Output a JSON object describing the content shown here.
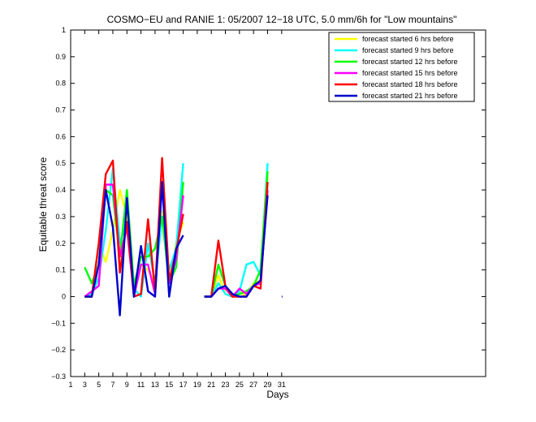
{
  "chart_data": {
    "type": "line",
    "title": "COSMO−EU and RANIE 1: 05/2007 12−18 UTC, 5.0 mm/6h for \"Low mountains\"",
    "xlabel": "Days",
    "ylabel": "Equitable threat score",
    "xlim": [
      1,
      60
    ],
    "ylim": [
      -0.3,
      1
    ],
    "xticks": [
      1,
      3,
      5,
      7,
      9,
      11,
      13,
      15,
      17,
      19,
      21,
      23,
      25,
      27,
      29,
      31
    ],
    "yticks": [
      -0.3,
      -0.2,
      -0.1,
      0,
      0.1,
      0.2,
      0.3,
      0.4,
      0.5,
      0.6,
      0.7,
      0.8,
      0.9,
      1
    ],
    "grid": false,
    "legend_position": "top-right",
    "x": [
      3,
      4,
      5,
      6,
      7,
      8,
      9,
      10,
      11,
      12,
      13,
      14,
      15,
      16,
      17,
      18,
      19,
      20,
      21,
      22,
      23,
      24,
      25,
      26,
      27,
      28,
      29,
      30,
      31
    ],
    "series": [
      {
        "name": "forecast started 6 hrs before",
        "color": "#ffff00",
        "values": [
          0,
          0,
          0.2,
          0.13,
          0.25,
          0.4,
          0.3,
          0,
          0.12,
          0.1,
          0.05,
          0.32,
          0.05,
          0.2,
          0.28,
          null,
          null,
          0,
          0,
          0.08,
          0.01,
          0,
          0.02,
          0,
          0.05,
          0.06,
          0.45,
          null,
          null
        ]
      },
      {
        "name": "forecast started 9 hrs before",
        "color": "#00ffff",
        "values": [
          0,
          0.01,
          0.07,
          0.25,
          0.48,
          0.2,
          0.28,
          0.03,
          0,
          0.2,
          0.05,
          0.3,
          0.1,
          0.18,
          0.5,
          null,
          null,
          0,
          0,
          0.05,
          0.01,
          0,
          0.02,
          0.12,
          0.13,
          0.08,
          0.5,
          null,
          null
        ]
      },
      {
        "name": "forecast started 12 hrs before",
        "color": "#00ff00",
        "values": [
          0.11,
          0.05,
          0.12,
          0.4,
          0.38,
          0.15,
          0.4,
          0.04,
          0.15,
          0.15,
          0.18,
          0.3,
          0.05,
          0.11,
          0.43,
          null,
          null,
          0,
          0,
          0.12,
          0.04,
          0,
          0.01,
          0.02,
          0.04,
          0.1,
          0.47,
          null,
          null
        ]
      },
      {
        "name": "forecast started 15 hrs before",
        "color": "#ff00ff",
        "values": [
          0,
          0.02,
          0.04,
          0.42,
          0.42,
          0.15,
          0.26,
          0,
          0.12,
          0.12,
          0.01,
          0.42,
          0.05,
          0.14,
          0.38,
          null,
          null,
          0,
          0,
          0.03,
          0.03,
          0,
          0.03,
          0.01,
          0.04,
          0.05,
          0.4,
          null,
          null
        ]
      },
      {
        "name": "forecast started 18 hrs before",
        "color": "#ff0000",
        "values": [
          0,
          0,
          0.2,
          0.46,
          0.51,
          0.09,
          0.28,
          0,
          0.01,
          0.29,
          0.02,
          0.52,
          0.06,
          0.17,
          0.31,
          null,
          null,
          0,
          0,
          0.21,
          0.04,
          0,
          0,
          0,
          0.04,
          0.03,
          0.43,
          null,
          null
        ]
      },
      {
        "name": "forecast started 21 hrs before",
        "color": "#0000cc",
        "values": [
          0,
          0,
          0.12,
          0.4,
          0.26,
          -0.07,
          0.37,
          0,
          0.19,
          0.02,
          0,
          0.43,
          0,
          0.18,
          0.23,
          null,
          null,
          0,
          0,
          0.03,
          0.04,
          0.01,
          0,
          0,
          0.04,
          0.06,
          0.38,
          null,
          0
        ]
      }
    ]
  }
}
